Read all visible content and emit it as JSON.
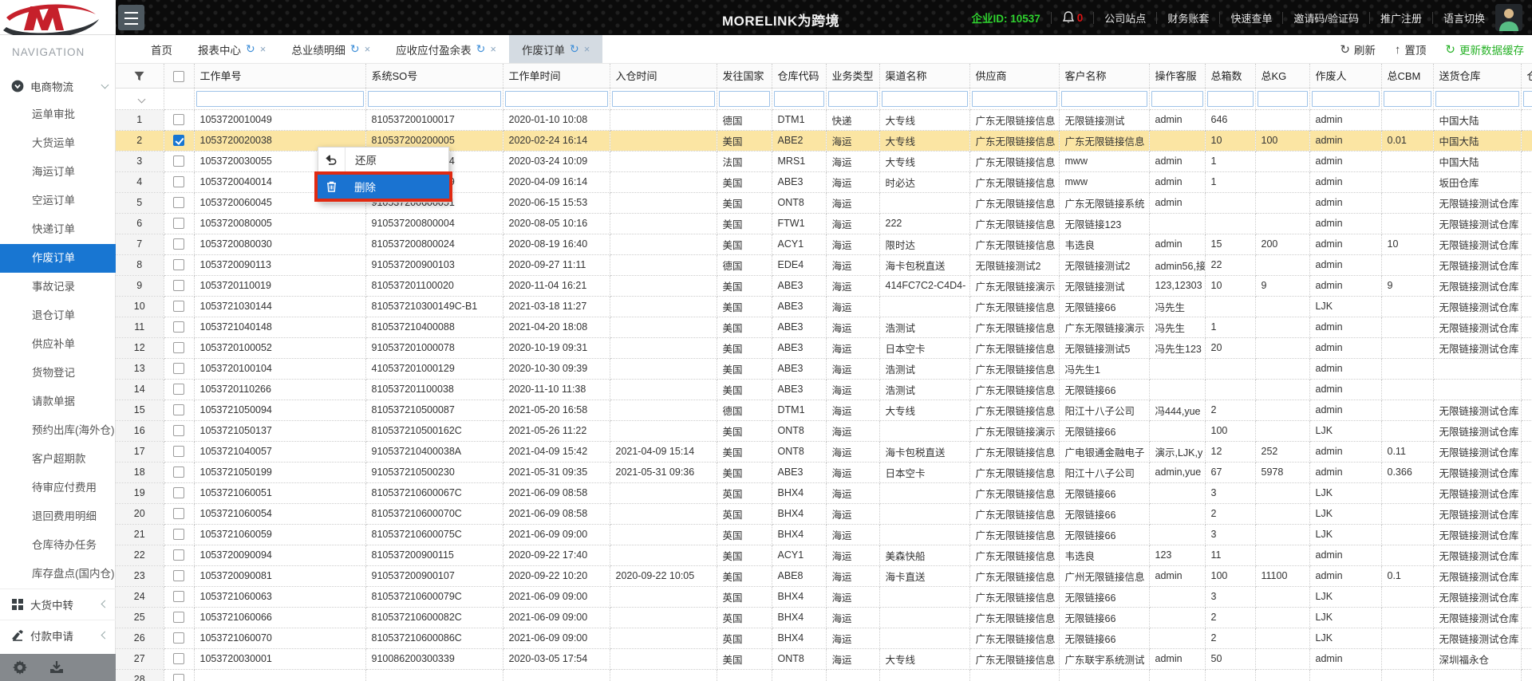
{
  "header": {
    "title": "MORELINK为跨境",
    "enterprise_id_label": "企业ID:",
    "enterprise_id": "10537",
    "notification_count": "0",
    "links": [
      "公司站点",
      "财务账套",
      "快速查单",
      "邀请码/验证码",
      "推广注册",
      "语言切换"
    ]
  },
  "sidebar": {
    "nav_title": "NAVIGATION",
    "group_label": "电商物流",
    "items": [
      "运单审批",
      "大货运单",
      "海运订单",
      "空运订单",
      "快递订单",
      "作废订单",
      "事故记录",
      "退仓订单",
      "供应补单",
      "货物登记",
      "请款单据",
      "预约出库(海外仓)",
      "客户超期款",
      "待审应付费用",
      "退回费用明细",
      "仓库待办任务",
      "库存盘点(国内仓)"
    ],
    "selected_item": "作废订单",
    "bottom_groups": [
      "大货中转",
      "付款申请"
    ]
  },
  "tabs": [
    {
      "label": "首页",
      "closable": false,
      "active": false
    },
    {
      "label": "报表中心",
      "closable": true,
      "active": false
    },
    {
      "label": "总业绩明细",
      "closable": true,
      "active": false
    },
    {
      "label": "应收应付盈余表",
      "closable": true,
      "active": false
    },
    {
      "label": "作废订单",
      "closable": true,
      "active": true
    }
  ],
  "toolbar": {
    "refresh": "刷新",
    "pin": "置顶",
    "update_cache": "更新数据缓存"
  },
  "context_menu": {
    "restore": "还原",
    "delete": "删除"
  },
  "table": {
    "columns": [
      "工作单号",
      "系统SO号",
      "工作单时间",
      "入仓时间",
      "发往国家",
      "仓库代码",
      "业务类型",
      "渠道名称",
      "供应商",
      "客户名称",
      "操作客服",
      "总箱数",
      "总KG",
      "作废人",
      "总CBM",
      "送货仓库",
      "仓"
    ],
    "selected_row": 2,
    "rows": [
      [
        "1053720010049",
        "810537200100017",
        "2020-01-10 10:08",
        "",
        "德国",
        "DTM1",
        "快递",
        "大专线",
        "广东无限链接信息",
        "无限链接测试",
        "admin",
        "646",
        "",
        "admin",
        "",
        "中国大陆"
      ],
      [
        "1053720020038",
        "810537200200005",
        "2020-02-24 16:14",
        "",
        "美国",
        "ABE2",
        "海运",
        "大专线",
        "广东无限链接信息",
        "广东无限链接信息",
        "",
        "10",
        "100",
        "admin",
        "0.01",
        "中国大陆"
      ],
      [
        "1053720030055",
        "810537200300004",
        "2020-03-24 10:09",
        "",
        "法国",
        "MRS1",
        "海运",
        "大专线",
        "广东无限链接信息",
        "mww",
        "admin",
        "1",
        "",
        "admin",
        "",
        "中国大陆"
      ],
      [
        "1053720040014",
        "810537200400009",
        "2020-04-09 16:14",
        "",
        "美国",
        "ABE3",
        "海运",
        "时必达",
        "广东无限链接信息",
        "mww",
        "admin",
        "1",
        "",
        "admin",
        "",
        "坂田仓库"
      ],
      [
        "1053720060045",
        "910537200600051",
        "2020-06-15 15:53",
        "",
        "美国",
        "ONT8",
        "海运",
        "",
        "广东无限链接信息",
        "广东无限链接系统",
        "admin",
        "",
        "",
        "admin",
        "",
        "无限链接测试仓库"
      ],
      [
        "1053720080005",
        "910537200800004",
        "2020-08-05 10:16",
        "",
        "美国",
        "FTW1",
        "海运",
        "222",
        "广东无限链接信息",
        "无限链接123",
        "",
        "",
        "",
        "admin",
        "",
        "无限链接测试仓库"
      ],
      [
        "1053720080030",
        "810537200800024",
        "2020-08-19 16:40",
        "",
        "美国",
        "ACY1",
        "海运",
        "限时达",
        "广东无限链接信息",
        "韦选良",
        "admin",
        "15",
        "200",
        "admin",
        "10",
        "无限链接测试仓库"
      ],
      [
        "1053720090113",
        "910537200900103",
        "2020-09-27 11:11",
        "",
        "德国",
        "EDE4",
        "海运",
        "海卡包税直送",
        "无限链接测试2",
        "无限链接测试2",
        "admin56,接",
        "22",
        "",
        "admin",
        "",
        "无限链接测试仓库"
      ],
      [
        "1053720110019",
        "810537201100020",
        "2020-11-04 16:21",
        "",
        "美国",
        "ABE3",
        "海运",
        "414FC7C2-C4D4-",
        "广东无限链接演示",
        "无限链接测试",
        "123,12303",
        "10",
        "9",
        "admin",
        "9",
        "无限链接测试仓库"
      ],
      [
        "1053721030144",
        "810537210300149C-B1",
        "2021-03-18 11:27",
        "",
        "美国",
        "ABE3",
        "海运",
        "",
        "广东无限链接信息",
        "无限链接66",
        "冯先生",
        "",
        "",
        "LJK",
        "",
        "无限链接测试仓库"
      ],
      [
        "1053721040148",
        "810537210400088",
        "2021-04-20 18:08",
        "",
        "美国",
        "ABE3",
        "海运",
        "浩测试",
        "广东无限链接信息",
        "广东无限链接演示",
        "冯先生",
        "1",
        "",
        "admin",
        "",
        "无限链接测试仓库"
      ],
      [
        "1053720100052",
        "910537201000078",
        "2020-10-19 09:31",
        "",
        "美国",
        "ABE3",
        "海运",
        "日本空卡",
        "广东无限链接信息",
        "无限链接测试5",
        "冯先生123",
        "20",
        "",
        "admin",
        "",
        "无限链接测试仓库"
      ],
      [
        "1053720100104",
        "410537201000129",
        "2020-10-30 09:39",
        "",
        "美国",
        "ABE3",
        "海运",
        "浩测试",
        "广东无限链接信息",
        "冯先生1",
        "",
        "",
        "",
        "admin",
        "",
        ""
      ],
      [
        "1053720110266",
        "810537201100038",
        "2020-11-10 11:38",
        "",
        "美国",
        "ABE3",
        "海运",
        "浩测试",
        "广东无限链接信息",
        "无限链接66",
        "",
        "",
        "",
        "admin",
        "",
        ""
      ],
      [
        "1053721050094",
        "810537210500087",
        "2021-05-20 16:58",
        "",
        "德国",
        "DTM1",
        "海运",
        "大专线",
        "广东无限链接信息",
        "阳江十八子公司",
        "冯444,yue",
        "2",
        "",
        "admin",
        "",
        "无限链接测试仓库"
      ],
      [
        "1053721050137",
        "810537210500162C",
        "2021-05-26 11:22",
        "",
        "美国",
        "ONT8",
        "海运",
        "",
        "广东无限链接演示",
        "无限链接66",
        "",
        "100",
        "",
        "LJK",
        "",
        "无限链接测试仓库"
      ],
      [
        "1053721040057",
        "910537210400038A",
        "2021-04-09 15:42",
        "2021-04-09 15:14",
        "美国",
        "ONT8",
        "海运",
        "海卡包税直送",
        "广东无限链接信息",
        "广电银通金融电子",
        "演示,LJK,y",
        "12",
        "252",
        "admin",
        "0.11",
        "无限链接测试仓库"
      ],
      [
        "1053721050199",
        "910537210500230",
        "2021-05-31 09:35",
        "2021-05-31 09:36",
        "美国",
        "ABE3",
        "海运",
        "日本空卡",
        "广东无限链接信息",
        "阳江十八子公司",
        "admin,yue",
        "67",
        "5978",
        "admin",
        "0.366",
        "无限链接测试仓库"
      ],
      [
        "1053721060051",
        "810537210600067C",
        "2021-06-09 08:58",
        "",
        "英国",
        "BHX4",
        "海运",
        "",
        "广东无限链接信息",
        "无限链接66",
        "",
        "3",
        "",
        "LJK",
        "",
        "无限链接测试仓库"
      ],
      [
        "1053721060054",
        "810537210600070C",
        "2021-06-09 08:58",
        "",
        "英国",
        "BHX4",
        "海运",
        "",
        "广东无限链接信息",
        "无限链接66",
        "",
        "2",
        "",
        "LJK",
        "",
        "无限链接测试仓库"
      ],
      [
        "1053721060059",
        "810537210600075C",
        "2021-06-09 09:00",
        "",
        "英国",
        "BHX4",
        "海运",
        "",
        "广东无限链接信息",
        "无限链接66",
        "",
        "3",
        "",
        "LJK",
        "",
        "无限链接测试仓库"
      ],
      [
        "1053720090094",
        "810537200900115",
        "2020-09-22 17:40",
        "",
        "美国",
        "ACY1",
        "海运",
        "美森快船",
        "广东无限链接信息",
        "韦选良",
        "123",
        "11",
        "",
        "admin",
        "",
        "无限链接测试仓库"
      ],
      [
        "1053720090081",
        "910537200900107",
        "2020-09-22 10:20",
        "2020-09-22 10:05",
        "美国",
        "ABE8",
        "海运",
        "海卡直送",
        "广东无限链接信息",
        "广州无限链接信息",
        "admin",
        "100",
        "11100",
        "admin",
        "0.1",
        "无限链接测试仓库"
      ],
      [
        "1053721060063",
        "810537210600079C",
        "2021-06-09 09:00",
        "",
        "英国",
        "BHX4",
        "海运",
        "",
        "广东无限链接信息",
        "无限链接66",
        "",
        "3",
        "",
        "LJK",
        "",
        "无限链接测试仓库"
      ],
      [
        "1053721060066",
        "810537210600082C",
        "2021-06-09 09:00",
        "",
        "英国",
        "BHX4",
        "海运",
        "",
        "广东无限链接信息",
        "无限链接66",
        "",
        "2",
        "",
        "LJK",
        "",
        "无限链接测试仓库"
      ],
      [
        "1053721060070",
        "810537210600086C",
        "2021-06-09 09:00",
        "",
        "英国",
        "BHX4",
        "海运",
        "",
        "广东无限链接信息",
        "无限链接66",
        "",
        "2",
        "",
        "LJK",
        "",
        "无限链接测试仓库"
      ],
      [
        "1053720030001",
        "910086200300339",
        "2020-03-05 17:54",
        "",
        "美国",
        "ONT8",
        "海运",
        "大专线",
        "广东无限链接信息",
        "广东联宇系统测试",
        "admin",
        "50",
        "",
        "admin",
        "",
        "深圳福永仓"
      ],
      [
        "",
        "",
        "",
        "",
        "",
        "",
        "",
        "",
        "",
        "",
        "",
        "",
        "",
        "",
        "",
        ""
      ]
    ]
  },
  "colors": {
    "accent_blue": "#1876d2",
    "selected_row_yellow": "#fbe5a3",
    "delete_highlight_blue": "#1a73d1",
    "annotation_red": "#e02a12",
    "enterprise_green": "#2fd32f",
    "cache_green": "#28b228"
  }
}
